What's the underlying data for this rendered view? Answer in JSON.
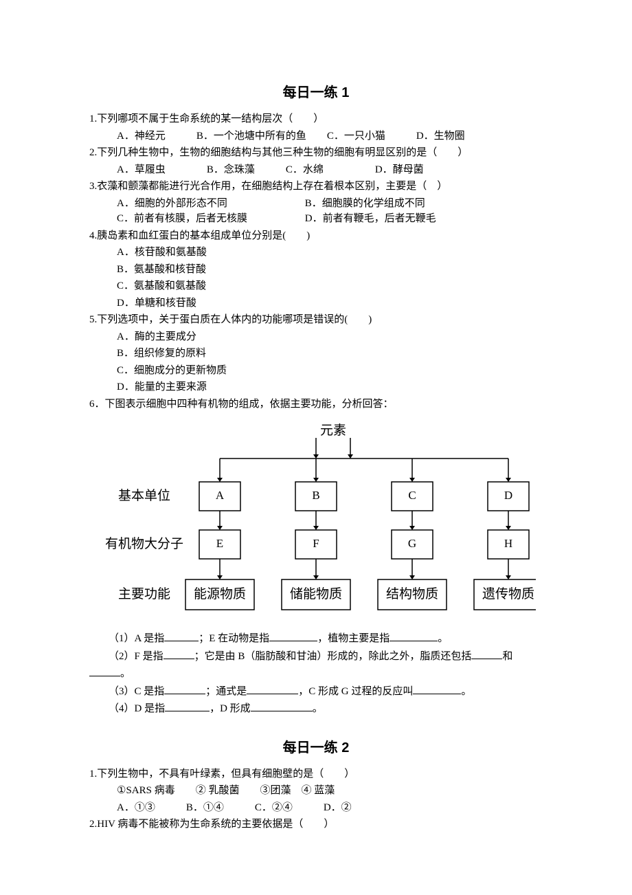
{
  "section1": {
    "title": "每日一练 1",
    "q1": {
      "stem": "1.下列哪项不属于生命系统的某一结构层次（　　）",
      "opts": "A．神经元　　　B．一个池塘中所有的鱼　　C．一只小猫　　　D．生物圈"
    },
    "q2": {
      "stem": "2.下列几种生物中，生物的细胞结构与其他三种生物的细胞有明显区别的是（　　）",
      "opts": "A．草履虫　　　　B．念珠藻　　　C．水绵　　　　　D．酵母菌"
    },
    "q3": {
      "stem": "3.衣藻和颤藻都能进行光合作用，在细胞结构上存在着根本区别，主要是（　）",
      "optA": "A．细胞的外部形态不同",
      "optB": "B．细胞膜的化学组成不同",
      "optC": "C．前者有核膜，后者无核膜",
      "optD": "D．前者有鞭毛，后者无鞭毛"
    },
    "q4": {
      "stem": "4.胰岛素和血红蛋白的基本组成单位分别是(　　)",
      "optA": "A．核苷酸和氨基酸",
      "optB": "B．氨基酸和核苷酸",
      "optC": "C．氨基酸和氨基酸",
      "optD": "D．单糖和核苷酸"
    },
    "q5": {
      "stem": "5.下列选项中，关于蛋白质在人体内的功能哪项是错误的(　　)",
      "optA": "A．酶的主要成分",
      "optB": "B．组织修复的原料",
      "optC": "C．细胞成分的更新物质",
      "optD": "D．能量的主要来源"
    },
    "q6": {
      "stem": "6．下图表示细胞中四种有机物的组成，依据主要功能，分析回答：",
      "diagram": {
        "top": "元素",
        "row_labels": [
          "基本单位",
          "有机物大分子",
          "主要功能"
        ],
        "cols": [
          {
            "unit": "A",
            "macro": "E",
            "func": "能源物质"
          },
          {
            "unit": "B",
            "macro": "F",
            "func": "储能物质"
          },
          {
            "unit": "C",
            "macro": "G",
            "func": "结构物质"
          },
          {
            "unit": "D",
            "macro": "H",
            "func": "遗传物质"
          }
        ],
        "colors": {
          "line": "#000000",
          "box_stroke": "#000000",
          "box_fill": "#ffffff"
        }
      },
      "p1a": "（1）A 是指",
      "p1b": "；E 在动物是指",
      "p1c": "，植物主要是指",
      "p1d": "。",
      "p2a": "（2）F 是指",
      "p2b": "；它是由 B（脂肪酸和甘油）形成的，除此之外，脂质还包括",
      "p2c": "和",
      "p2d": "。",
      "p3a": "（3）C 是指",
      "p3b": "；通式是",
      "p3c": "，C 形成 G 过程的反应叫",
      "p3d": "。",
      "p4a": "（4）D 是指",
      "p4b": "，D 形成",
      "p4c": "。"
    }
  },
  "section2": {
    "title": "每日一练 2",
    "q1": {
      "stem": "1.下列生物中，不具有叶绿素，但具有细胞壁的是（　　）",
      "line2": "①SARS 病毒　　② 乳酸菌　　③团藻　④ 蓝藻",
      "opts": "A．①③　　　B．①④　　　C．②④　　　D．②"
    },
    "q2": {
      "stem": "2.HIV 病毒不能被称为生命系统的主要依据是（　　）"
    }
  }
}
